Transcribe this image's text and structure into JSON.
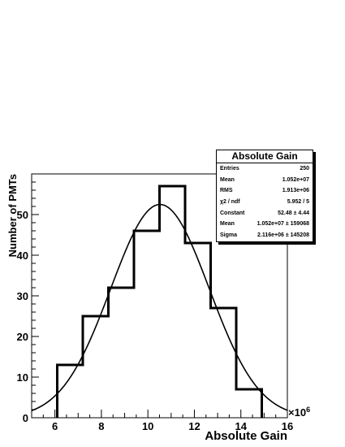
{
  "chart_data": {
    "type": "bar",
    "title": "Absolute Gain",
    "xlabel": "Absolute Gain",
    "ylabel": "Number of PMTs",
    "x_multiplier": "×10",
    "x_multiplier_exp": "6",
    "xlim": [
      5,
      16
    ],
    "ylim": [
      0,
      60
    ],
    "x_ticks": [
      6,
      8,
      10,
      12,
      14,
      16
    ],
    "y_ticks": [
      0,
      10,
      20,
      30,
      40,
      50
    ],
    "bin_edges": [
      6.1,
      7.2,
      8.3,
      9.4,
      10.5,
      11.6,
      12.7,
      13.8,
      14.9
    ],
    "values": [
      13,
      25,
      32,
      46,
      57,
      43,
      27,
      7
    ],
    "fit": {
      "type": "gaussian",
      "constant": 52.48,
      "mean": 10.52,
      "sigma": 2.116
    },
    "grid": false,
    "legend": "top-right"
  },
  "stats": {
    "title": "Absolute Gain",
    "rows": [
      {
        "label": "Entries",
        "value": "250"
      },
      {
        "label": "Mean",
        "value": "1.052e+07"
      },
      {
        "label": "RMS",
        "value": "1.913e+06"
      },
      {
        "label": "χ2 / ndf",
        "value": "5.952 / 5"
      },
      {
        "label": "Constant",
        "value": "52.48 ± 4.44"
      },
      {
        "label": "Mean",
        "value": "1.052e+07 ± 159068"
      },
      {
        "label": "Sigma",
        "value": "2.116e+06 ± 145208"
      }
    ]
  }
}
